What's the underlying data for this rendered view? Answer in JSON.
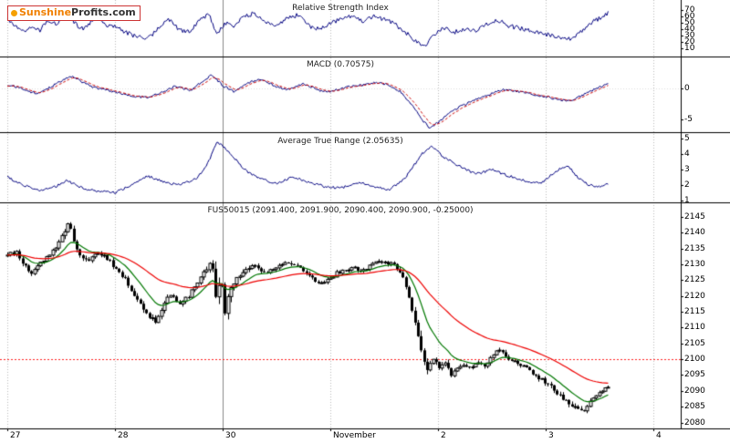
{
  "logo": {
    "brand_orange": "Sunshine",
    "brand_dark": "Profits.com"
  },
  "x_axis": {
    "labels": [
      "27",
      "28",
      "30",
      "November",
      "2",
      "3",
      "4"
    ]
  },
  "colors": {
    "indicator_line": "#000080",
    "macd_signal": "#cc0000",
    "candle": "#000000",
    "ma_fast": "#007700",
    "ma_slow": "#ee0000",
    "ref_line": "#ff2020",
    "grid": "#bbbbbb",
    "grid_strong": "#888888",
    "frame": "#000000"
  },
  "chart_data": [
    {
      "type": "line",
      "name": "rsi",
      "title": "Relative Strength Index",
      "ylim": [
        0,
        80
      ],
      "yticks": [
        70,
        60,
        50,
        40,
        30,
        20,
        10
      ],
      "x_unit": "sessions Oct 27 - Nov 4",
      "keyframes": {
        "t": [
          0,
          0.08,
          0.15,
          0.22,
          0.3,
          0.38,
          0.45,
          0.55,
          0.62,
          0.7,
          0.78,
          0.85,
          0.92,
          1,
          1.1,
          1.2,
          1.3,
          1.4,
          1.5,
          1.6,
          1.7,
          1.8,
          1.88,
          1.95,
          2.02,
          2.1,
          2.2,
          2.3,
          2.4,
          2.5,
          2.6,
          2.7,
          2.8,
          2.9,
          3,
          3.1,
          3.2,
          3.3,
          3.4,
          3.5,
          3.6,
          3.7,
          3.8,
          3.88,
          3.95,
          4.05,
          4.15,
          4.25,
          4.35,
          4.45,
          4.55,
          4.65,
          4.75,
          4.85,
          4.95,
          5.05,
          5.15,
          5.25,
          5.32,
          5.4,
          5.48,
          5.58
        ],
        "v": [
          55,
          45,
          35,
          42,
          38,
          52,
          48,
          65,
          50,
          40,
          52,
          58,
          45,
          45,
          35,
          28,
          24,
          40,
          55,
          38,
          35,
          58,
          62,
          30,
          50,
          45,
          60,
          65,
          50,
          45,
          58,
          62,
          45,
          40,
          50,
          55,
          60,
          52,
          60,
          55,
          48,
          35,
          20,
          14,
          30,
          42,
          35,
          40,
          38,
          48,
          55,
          45,
          42,
          38,
          35,
          30,
          26,
          24,
          35,
          48,
          55,
          65
        ]
      }
    },
    {
      "type": "line",
      "name": "macd",
      "title": "MACD (0.70575)",
      "last_value": 0.70575,
      "ylim": [
        -6.9,
        5.15
      ],
      "yticks": [
        0,
        -5
      ],
      "series": [
        {
          "name": "macd-line",
          "style": "solid"
        },
        {
          "name": "signal-line",
          "style": "dashed"
        }
      ],
      "keyframes": {
        "t": [
          0,
          0.1,
          0.2,
          0.3,
          0.4,
          0.5,
          0.6,
          0.7,
          0.8,
          0.9,
          1,
          1.15,
          1.3,
          1.45,
          1.55,
          1.7,
          1.8,
          1.9,
          2,
          2.1,
          2.25,
          2.35,
          2.5,
          2.6,
          2.75,
          2.9,
          3,
          3.15,
          3.3,
          3.45,
          3.55,
          3.65,
          3.75,
          3.85,
          3.92,
          4,
          4.1,
          4.2,
          4.35,
          4.5,
          4.6,
          4.75,
          4.9,
          5.05,
          5.2,
          5.3,
          5.4,
          5.5,
          5.58
        ],
        "v": [
          0.5,
          0.2,
          -0.5,
          -0.8,
          0.2,
          1.2,
          2,
          1,
          0.2,
          -0.2,
          -0.5,
          -1.2,
          -1.5,
          -0.5,
          0.3,
          -0.3,
          1,
          2.2,
          0.5,
          -0.5,
          1,
          1.5,
          0.3,
          -0.2,
          0.8,
          -0.3,
          -0.5,
          0.2,
          0.5,
          1,
          0.5,
          -0.5,
          -2.5,
          -5,
          -6.3,
          -5.5,
          -4,
          -3,
          -1.8,
          -0.8,
          -0.2,
          -0.5,
          -1,
          -1.5,
          -2,
          -1.5,
          -0.5,
          0.2,
          0.7
        ]
      }
    },
    {
      "type": "line",
      "name": "atr",
      "title": "Average True Range (2.05635)",
      "last_value": 2.05635,
      "ylim": [
        0.94,
        5.24
      ],
      "yticks": [
        5,
        4,
        3,
        2,
        1
      ],
      "keyframes": {
        "t": [
          0,
          0.15,
          0.3,
          0.45,
          0.55,
          0.7,
          0.85,
          1,
          1.15,
          1.3,
          1.45,
          1.6,
          1.75,
          1.85,
          1.95,
          2.05,
          2.2,
          2.35,
          2.5,
          2.65,
          2.8,
          2.95,
          3.1,
          3.25,
          3.4,
          3.55,
          3.7,
          3.85,
          3.95,
          4.05,
          4.2,
          4.35,
          4.5,
          4.65,
          4.8,
          4.95,
          5.1,
          5.2,
          5.3,
          5.4,
          5.5,
          5.58
        ],
        "v": [
          2.5,
          2,
          1.6,
          1.9,
          2.3,
          1.8,
          1.6,
          1.5,
          2,
          2.6,
          2.2,
          2,
          2.4,
          3.2,
          4.8,
          4.2,
          3,
          2.4,
          2.1,
          2.5,
          2.2,
          1.9,
          1.8,
          2.2,
          1.9,
          1.7,
          2.5,
          4,
          4.5,
          3.8,
          3.2,
          2.7,
          3,
          2.6,
          2.3,
          2.1,
          2.9,
          3.3,
          2.5,
          2,
          1.9,
          2.1
        ]
      }
    },
    {
      "type": "candlestick",
      "name": "price",
      "symbol": "FUS50015",
      "title": "FUS50015 (2091.400, 2091.900, 2090.400, 2090.900, -0.25000)",
      "last_ohlc": {
        "open": 2091.4,
        "high": 2091.9,
        "low": 2090.4,
        "close": 2090.9,
        "change": -0.25
      },
      "ylim": [
        2079,
        2147
      ],
      "yticks": [
        2145,
        2140,
        2135,
        2130,
        2125,
        2120,
        2115,
        2110,
        2105,
        2100,
        2095,
        2090,
        2085,
        2080
      ],
      "ref_line": 2100,
      "overlays": [
        "fast-ma",
        "slow-ma"
      ],
      "keyframes": {
        "t": [
          0,
          0.08,
          0.15,
          0.22,
          0.3,
          0.38,
          0.45,
          0.52,
          0.57,
          0.62,
          0.68,
          0.75,
          0.82,
          0.9,
          1,
          1.1,
          1.2,
          1.3,
          1.38,
          1.45,
          1.52,
          1.6,
          1.68,
          1.76,
          1.84,
          1.9,
          1.94,
          1.98,
          2.02,
          2.06,
          2.12,
          2.2,
          2.3,
          2.4,
          2.5,
          2.58,
          2.66,
          2.74,
          2.82,
          2.9,
          3,
          3.1,
          3.2,
          3.3,
          3.4,
          3.5,
          3.58,
          3.66,
          3.72,
          3.78,
          3.84,
          3.9,
          3.96,
          4,
          4.06,
          4.12,
          4.2,
          4.28,
          4.36,
          4.44,
          4.52,
          4.58,
          4.66,
          4.74,
          4.82,
          4.9,
          4.98,
          5.06,
          5.14,
          5.22,
          5.3,
          5.36,
          5.42,
          5.48,
          5.54,
          5.58
        ],
        "close": [
          2133,
          2134,
          2130,
          2127,
          2130,
          2133,
          2135,
          2140,
          2143,
          2137,
          2132,
          2131,
          2134,
          2133,
          2129,
          2125,
          2119,
          2114,
          2112,
          2117,
          2121,
          2117,
          2120,
          2124,
          2128,
          2131,
          2118,
          2128,
          2114,
          2122,
          2125,
          2128,
          2130,
          2127,
          2129,
          2131,
          2130,
          2128,
          2126,
          2124,
          2126,
          2128,
          2129,
          2128,
          2130,
          2131,
          2130,
          2127,
          2121,
          2112,
          2103,
          2096,
          2101,
          2097,
          2099,
          2095,
          2098,
          2097,
          2099,
          2098,
          2102,
          2103,
          2100,
          2099,
          2097,
          2095,
          2093,
          2091,
          2088,
          2086,
          2084,
          2083,
          2087,
          2089,
          2091,
          2090.9
        ],
        "range": [
          2,
          2,
          2.5,
          2.5,
          2,
          2,
          2,
          3,
          3.5,
          3,
          2.5,
          2,
          2,
          2,
          2,
          2.5,
          3,
          3,
          3,
          3,
          2.5,
          2.5,
          2,
          2,
          3,
          4,
          12,
          10,
          12,
          6,
          3,
          2.5,
          2,
          2,
          2,
          2,
          2,
          2,
          2,
          2.5,
          2,
          2,
          2,
          2,
          2,
          2,
          2,
          2.5,
          4,
          5,
          5,
          4,
          3.5,
          3,
          2.5,
          3,
          2.5,
          2,
          2,
          2,
          2.5,
          2.5,
          2,
          2,
          2,
          2.5,
          2.5,
          2.5,
          2.5,
          2.5,
          2.5,
          2.5,
          2.5,
          2,
          2,
          1.5
        ]
      }
    }
  ]
}
